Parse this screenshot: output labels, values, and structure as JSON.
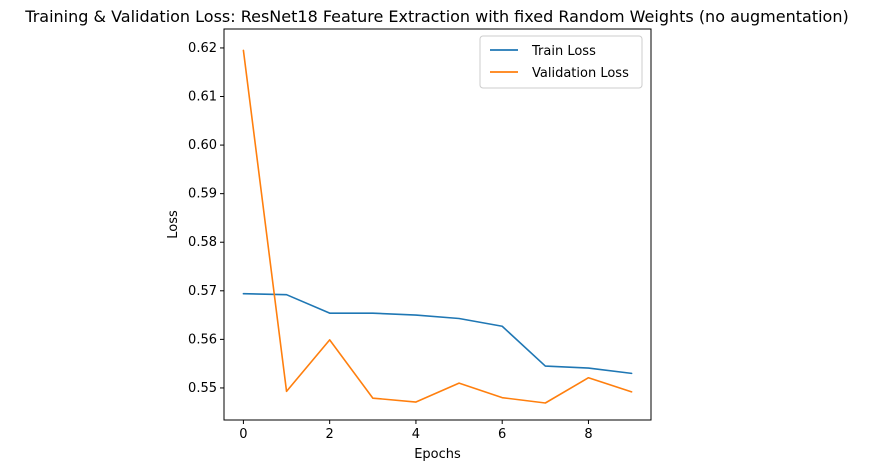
{
  "chart_data": {
    "type": "line",
    "title": "Training & Validation Loss: ResNet18 Feature Extraction with fixed Random Weights (no augmentation)",
    "xlabel": "Epochs",
    "ylabel": "Loss",
    "x": [
      0,
      1,
      2,
      3,
      4,
      5,
      6,
      7,
      8,
      9
    ],
    "xlim": [
      -0.45,
      9.45
    ],
    "ylim": [
      0.5434,
      0.6239
    ],
    "xticks": [
      0,
      2,
      4,
      6,
      8
    ],
    "yticks": [
      0.55,
      0.56,
      0.57,
      0.58,
      0.59,
      0.6,
      0.61,
      0.62
    ],
    "ytick_labels": [
      "0.55",
      "0.56",
      "0.57",
      "0.58",
      "0.59",
      "0.60",
      "0.61",
      "0.62"
    ],
    "grid": false,
    "legend_position": "top-right",
    "series": [
      {
        "name": "Train Loss",
        "color": "#1f77b4",
        "values": [
          0.5694,
          0.5692,
          0.5654,
          0.5654,
          0.565,
          0.5643,
          0.5627,
          0.5545,
          0.5541,
          0.553
        ]
      },
      {
        "name": "Validation Loss",
        "color": "#ff7f0e",
        "values": [
          0.6195,
          0.5493,
          0.5599,
          0.5479,
          0.5471,
          0.551,
          0.548,
          0.5469,
          0.5521,
          0.5492
        ]
      }
    ]
  }
}
